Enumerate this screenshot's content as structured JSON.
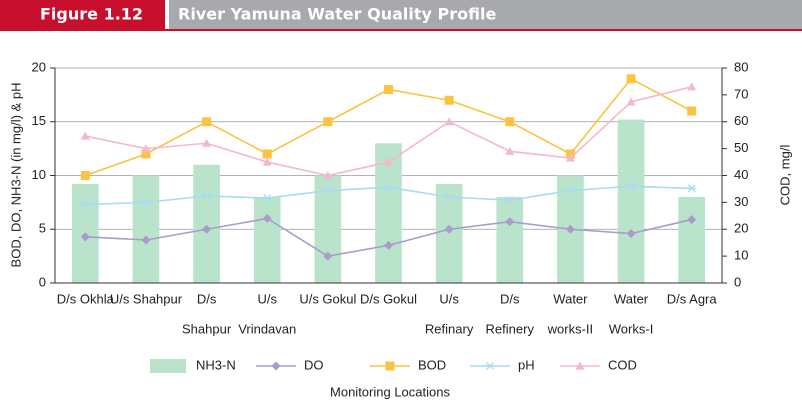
{
  "chart_data": {
    "type": "bar",
    "figure_label": "Figure 1.12",
    "title": "River Yamuna Water Quality Profile",
    "ylabel": "BOD, DO, NH3-N (in mg/l) & pH",
    "y2label": "COD, mg/l",
    "xlabel": "Monitoring Locations",
    "categories": [
      [
        "D/s Okhla"
      ],
      [
        "U/s Shahpur"
      ],
      [
        "D/s",
        "Shahpur"
      ],
      [
        "U/s",
        "Vrindavan"
      ],
      [
        "U/s Gokul"
      ],
      [
        "D/s Gokul"
      ],
      [
        "U/s",
        "Refinary"
      ],
      [
        "D/s",
        "Refinery"
      ],
      [
        "Water",
        "works-II"
      ],
      [
        "Water",
        "Works-I"
      ],
      [
        "D/s Agra"
      ]
    ],
    "ylim": [
      0,
      20
    ],
    "yticks": [
      0,
      5,
      10,
      15,
      20
    ],
    "y2lim": [
      0,
      80
    ],
    "y2ticks": [
      0,
      10,
      20,
      30,
      40,
      50,
      60,
      70,
      80
    ],
    "grid": true,
    "legend": "bottom",
    "series": [
      {
        "name": "NH3-N",
        "type": "bar",
        "color": "#b9e3ca",
        "values": [
          9.2,
          10,
          11,
          8,
          10,
          13,
          9.2,
          8,
          10,
          15.2,
          8
        ]
      },
      {
        "name": "DO",
        "type": "line",
        "marker": "diamond",
        "color": "#a99ccc",
        "values": [
          4.3,
          4,
          5,
          6,
          2.5,
          3.5,
          5,
          5.7,
          5,
          4.6,
          5.9
        ]
      },
      {
        "name": "BOD",
        "type": "line",
        "marker": "square",
        "axis": "y2",
        "color": "#fcc341",
        "values": [
          40,
          48,
          60,
          48,
          60,
          72,
          68,
          60,
          48,
          76,
          64
        ]
      },
      {
        "name": "pH",
        "type": "line",
        "marker": "star",
        "color": "#a8dcf0",
        "values": [
          7.3,
          7.5,
          8.1,
          7.9,
          8.6,
          8.9,
          8,
          7.7,
          8.6,
          9,
          8.8
        ]
      },
      {
        "name": "COD",
        "type": "line",
        "marker": "triangle",
        "axis": "y2",
        "color": "#f4b8cc",
        "values": [
          54.7,
          50,
          52,
          45,
          40,
          45,
          60,
          49,
          46.5,
          67.4,
          73
        ]
      }
    ]
  }
}
